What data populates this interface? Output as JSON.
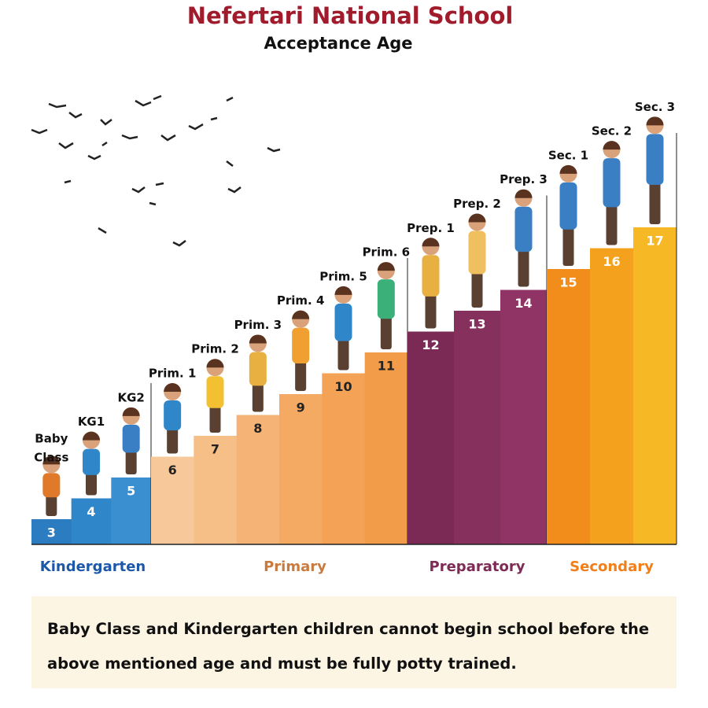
{
  "header": {
    "title": "Nefertari National School",
    "subtitle": "Acceptance Age"
  },
  "stages": [
    {
      "name": "Kindergarten",
      "grades": [
        {
          "label": "Baby Class",
          "age": 3
        },
        {
          "label": "KG1",
          "age": 4
        },
        {
          "label": "KG2",
          "age": 5
        }
      ]
    },
    {
      "name": "Primary",
      "grades": [
        {
          "label": "Prim. 1",
          "age": 6
        },
        {
          "label": "Prim. 2",
          "age": 7
        },
        {
          "label": "Prim. 3",
          "age": 8
        },
        {
          "label": "Prim. 4",
          "age": 9
        },
        {
          "label": "Prim. 5",
          "age": 10
        },
        {
          "label": "Prim. 6",
          "age": 11
        }
      ]
    },
    {
      "name": "Preparatory",
      "grades": [
        {
          "label": "Prep. 1",
          "age": 12
        },
        {
          "label": "Prep. 2",
          "age": 13
        },
        {
          "label": "Prep. 3",
          "age": 14
        }
      ]
    },
    {
      "name": "Secondary",
      "grades": [
        {
          "label": "Sec. 1",
          "age": 15
        },
        {
          "label": "Sec. 2",
          "age": 16
        },
        {
          "label": "Sec. 3",
          "age": 17
        }
      ]
    }
  ],
  "note": "Baby Class and Kindergarten children cannot begin school before the above mentioned age and must be fully potty trained."
}
